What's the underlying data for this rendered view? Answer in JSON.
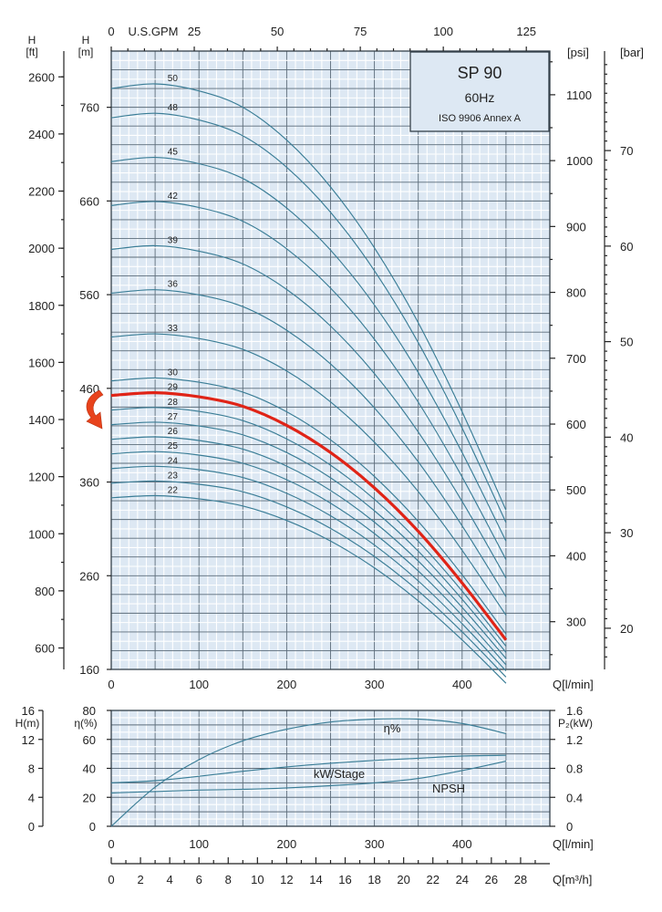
{
  "colors": {
    "plot_bg": "#dde8f3",
    "curve": "#3a7d96",
    "highlight": "#e02417",
    "arrow": "#e8431c"
  },
  "title_box": {
    "model": "SP 90",
    "freq": "60Hz",
    "standard": "ISO 9906 Annex A"
  },
  "chart_data": [
    {
      "type": "line",
      "title": "SP 90 60Hz ISO 9906 Annex A",
      "xlabel": "Q[l/min]",
      "ylabel": "H [m]",
      "xlim": [
        0,
        500
      ],
      "ylim": [
        160,
        820
      ],
      "x_ticks": [
        0,
        100,
        200,
        300,
        400
      ],
      "y_ticks": [
        160,
        260,
        360,
        460,
        560,
        660,
        760
      ],
      "top_axis": {
        "label": "U.S.GPM",
        "ticks": [
          0,
          25,
          50,
          75,
          100,
          125
        ]
      },
      "left_axis_ft": {
        "label": "H [ft]",
        "ticks": [
          600,
          800,
          1000,
          1200,
          1400,
          1600,
          1800,
          2000,
          2200,
          2400,
          2600
        ]
      },
      "right_axis_psi": {
        "label": "[psi]",
        "ticks": [
          300,
          400,
          500,
          600,
          700,
          800,
          900,
          1000,
          1100
        ]
      },
      "right_axis_bar": {
        "label": "[bar]",
        "ticks": [
          20,
          30,
          40,
          50,
          60,
          70
        ]
      },
      "stage_curves": {
        "q": [
          0,
          50,
          100,
          150,
          200,
          250,
          300,
          350,
          400,
          450
        ],
        "head_per_stage": [
          15.6,
          15.7,
          15.55,
          15.2,
          14.5,
          13.5,
          12.2,
          10.6,
          8.7,
          6.6
        ],
        "stages": [
          22,
          23,
          24,
          25,
          26,
          27,
          28,
          29,
          30,
          33,
          36,
          39,
          42,
          45,
          48,
          50
        ],
        "highlighted_stage": 29
      }
    },
    {
      "type": "line",
      "xlabel": "Q[l/min]",
      "x_ticks": [
        0,
        100,
        200,
        300,
        400
      ],
      "xlim": [
        0,
        500
      ],
      "axes": {
        "h_m": {
          "label": "H(m)",
          "ticks": [
            0,
            4,
            8,
            12,
            16
          ]
        },
        "eta": {
          "label": "η(%)",
          "ticks": [
            0,
            20,
            40,
            60,
            80
          ]
        },
        "p2": {
          "label": "P₂(kW)",
          "ticks": [
            "0",
            "0.4",
            "0.8",
            "1.2",
            "1.6"
          ]
        }
      },
      "series": [
        {
          "name": "η%",
          "axis": "eta",
          "x": [
            0,
            50,
            100,
            150,
            200,
            250,
            300,
            350,
            400,
            450
          ],
          "values": [
            0,
            27,
            46,
            59,
            67,
            72,
            74,
            74,
            71,
            64
          ]
        },
        {
          "name": "kW/Stage",
          "axis": "p2",
          "x": [
            0,
            50,
            100,
            150,
            200,
            250,
            300,
            350,
            400,
            450
          ],
          "values": [
            0.6,
            0.63,
            0.69,
            0.76,
            0.82,
            0.87,
            0.91,
            0.94,
            0.97,
            0.98
          ]
        },
        {
          "name": "NPSH",
          "axis": "h_m",
          "x": [
            0,
            50,
            100,
            150,
            200,
            250,
            300,
            350,
            400,
            450
          ],
          "values": [
            4.6,
            4.8,
            5.0,
            5.1,
            5.3,
            5.6,
            6.0,
            6.6,
            7.7,
            9.0
          ]
        }
      ]
    },
    {
      "type": "axis",
      "xlabel": "Q[m³/h]",
      "ticks": [
        0,
        2,
        4,
        6,
        8,
        10,
        12,
        14,
        16,
        18,
        20,
        22,
        24,
        26,
        28
      ]
    }
  ]
}
